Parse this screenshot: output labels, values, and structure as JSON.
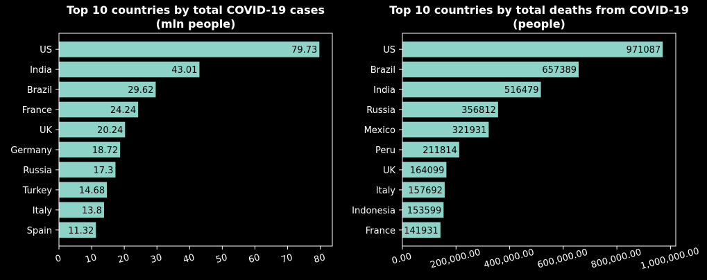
{
  "chart_data": [
    {
      "type": "bar",
      "orientation": "horizontal",
      "title": [
        "Top 10 countries by total COVID-19 cases",
        "(mln people)"
      ],
      "categories": [
        "US",
        "India",
        "Brazil",
        "France",
        "UK",
        "Germany",
        "Russia",
        "Turkey",
        "Italy",
        "Spain"
      ],
      "values": [
        79.73,
        43.01,
        29.62,
        24.24,
        20.24,
        18.72,
        17.3,
        14.68,
        13.8,
        11.32
      ],
      "value_labels": [
        "79.73",
        "43.01",
        "29.62",
        "24.24",
        "20.24",
        "18.72",
        "17.3",
        "14.68",
        "13.8",
        "11.32"
      ],
      "xticks": [
        0,
        10,
        20,
        30,
        40,
        50,
        60,
        70,
        80
      ],
      "xtick_labels": [
        "0",
        "10",
        "20",
        "30",
        "40",
        "50",
        "60",
        "70",
        "80"
      ],
      "xlim": [
        0,
        83.7
      ],
      "grid": false,
      "bar_color": "#8dd3c7"
    },
    {
      "type": "bar",
      "orientation": "horizontal",
      "title": [
        "Top 10 countries by total deaths from COVID-19",
        "(people)"
      ],
      "categories": [
        "US",
        "Brazil",
        "India",
        "Russia",
        "Mexico",
        "Peru",
        "UK",
        "Italy",
        "Indonesia",
        "France"
      ],
      "values": [
        971087,
        657389,
        516479,
        356812,
        321931,
        211814,
        164099,
        157692,
        153599,
        141931
      ],
      "value_labels": [
        "971087",
        "657389",
        "516479",
        "356812",
        "321931",
        "211814",
        "164099",
        "157692",
        "153599",
        "141931"
      ],
      "xticks": [
        0,
        200000,
        400000,
        600000,
        800000,
        1000000
      ],
      "xtick_labels": [
        "0.00",
        "200,000.00",
        "400,000.00",
        "600,000.00",
        "800,000.00",
        "1,000,000.00"
      ],
      "xlim": [
        0,
        1019641
      ],
      "grid": false,
      "bar_color": "#8dd3c7"
    }
  ]
}
